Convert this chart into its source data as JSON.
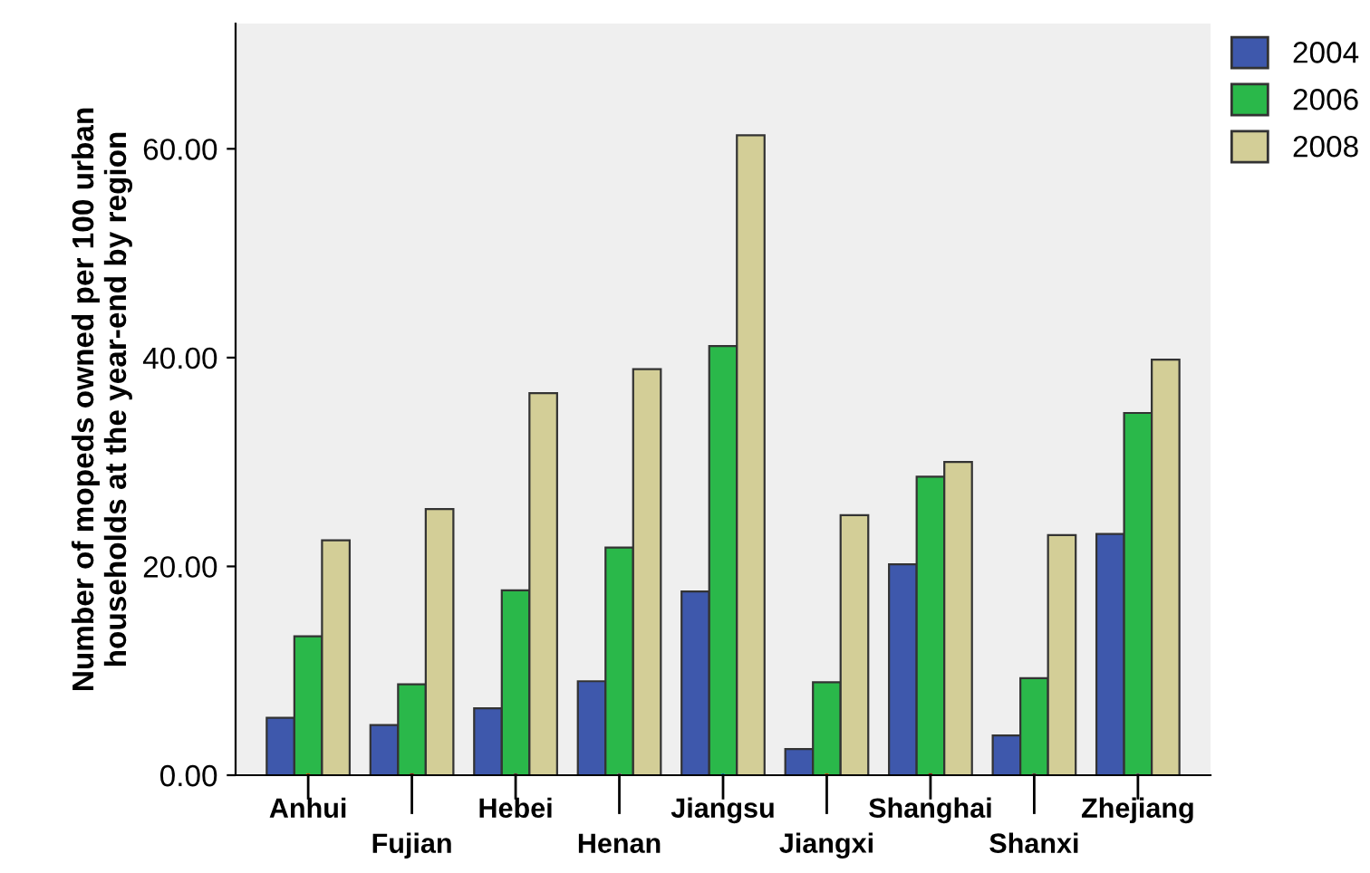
{
  "chart_data": {
    "type": "bar",
    "ylabel": "Number of mopeds owned per 100 urban\nhouseholds at the year-end by region",
    "categories": [
      "Anhui",
      "Fujian",
      "Hebei",
      "Henan",
      "Jiangsu",
      "Jiangxi",
      "Shanghai",
      "Shanxi",
      "Zhejiang"
    ],
    "series": [
      {
        "name": "2004",
        "color": "#3e58ac",
        "values": [
          5.5,
          4.8,
          6.4,
          9.0,
          17.6,
          2.5,
          20.2,
          3.8,
          23.1
        ]
      },
      {
        "name": "2006",
        "color": "#2ab84a",
        "values": [
          13.3,
          8.7,
          17.7,
          21.8,
          41.1,
          8.9,
          28.6,
          9.3,
          34.7
        ]
      },
      {
        "name": "2008",
        "color": "#d3ce97",
        "values": [
          22.5,
          25.5,
          36.6,
          38.9,
          61.3,
          24.9,
          30.0,
          23.0,
          39.8
        ]
      }
    ],
    "ylim": [
      0,
      72
    ],
    "yticks": [
      {
        "value": 0,
        "label": "0.00"
      },
      {
        "value": 20,
        "label": "20.00"
      },
      {
        "value": 40,
        "label": "40.00"
      },
      {
        "value": 60,
        "label": "60.00"
      }
    ],
    "grid": false,
    "legend": "top right"
  }
}
